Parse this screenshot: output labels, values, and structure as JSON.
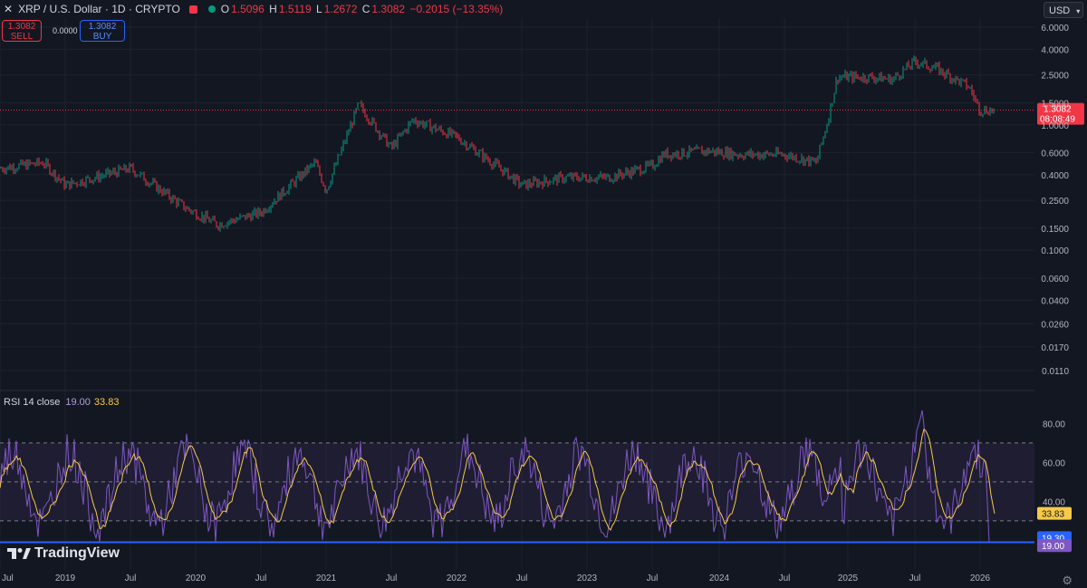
{
  "header": {
    "symbol": "XRP / U.S. Dollar · 1D · CRYPTO",
    "o_label": "O",
    "o": "1.5096",
    "h_label": "H",
    "h": "1.5119",
    "l_label": "L",
    "l": "1.2672",
    "c_label": "C",
    "c": "1.3082",
    "change": "−0.2015 (−13.35%)"
  },
  "trade": {
    "sell_price": "1.3082",
    "sell_label": "SELL",
    "spread": "0.0000",
    "buy_price": "1.3082",
    "buy_label": "BUY"
  },
  "currency": "USD",
  "colors": {
    "up": "#089981",
    "down": "#f23645",
    "rsi": "#7e57c2",
    "rsi_ma": "#f7c948",
    "background": "#131722"
  },
  "rsi_header": {
    "label": "RSI 14 close",
    "value_rsi": "19.00",
    "value_ma": "33.83"
  },
  "brand": "TradingView",
  "chart_data": [
    {
      "type": "candlestick",
      "title": "XRP / U.S. Dollar · 1D · CRYPTO",
      "y_scale": "log",
      "y_ticks": [
        "6.0000",
        "4.0000",
        "2.5000",
        "1.5000",
        "1.0000",
        "0.6000",
        "0.4000",
        "0.2500",
        "0.1500",
        "0.1000",
        "0.0600",
        "0.0400",
        "0.0260",
        "0.0170",
        "0.0110"
      ],
      "x_ticks": [
        "Jul",
        "2019",
        "Jul",
        "2020",
        "Jul",
        "2021",
        "Jul",
        "2022",
        "Jul",
        "2023",
        "Jul",
        "2024",
        "Jul",
        "2025",
        "Jul",
        "2026"
      ],
      "last_price": "1.3082",
      "countdown": "08:08:49",
      "approx_series": {
        "x": [
          "2018-07",
          "2018-11",
          "2019-01",
          "2019-07",
          "2019-12",
          "2020-03",
          "2020-07",
          "2020-12",
          "2021-01",
          "2021-04",
          "2021-07",
          "2021-09",
          "2022-01",
          "2022-05",
          "2022-07",
          "2022-11",
          "2023-03",
          "2023-07",
          "2023-08",
          "2023-12",
          "2024-03",
          "2024-07",
          "2024-10",
          "2024-11",
          "2024-12",
          "2025-03",
          "2025-05",
          "2025-07",
          "2025-09",
          "2025-12",
          "2026-01"
        ],
        "close": [
          0.45,
          0.5,
          0.33,
          0.45,
          0.22,
          0.16,
          0.2,
          0.5,
          0.3,
          1.45,
          0.65,
          1.1,
          0.8,
          0.45,
          0.33,
          0.38,
          0.38,
          0.47,
          0.58,
          0.62,
          0.58,
          0.58,
          0.5,
          1.0,
          2.4,
          2.4,
          2.3,
          3.2,
          2.8,
          2.0,
          1.3082
        ]
      }
    },
    {
      "type": "line",
      "title": "RSI 14 close",
      "y_ticks": [
        "80.00",
        "60.00",
        "40.00"
      ],
      "levels": [
        70,
        50,
        30
      ],
      "series": [
        {
          "name": "RSI",
          "last": 19.0
        },
        {
          "name": "RSI MA",
          "last": 33.83
        }
      ],
      "price_labels": [
        "33.83",
        "19.30",
        "19.00"
      ]
    }
  ]
}
